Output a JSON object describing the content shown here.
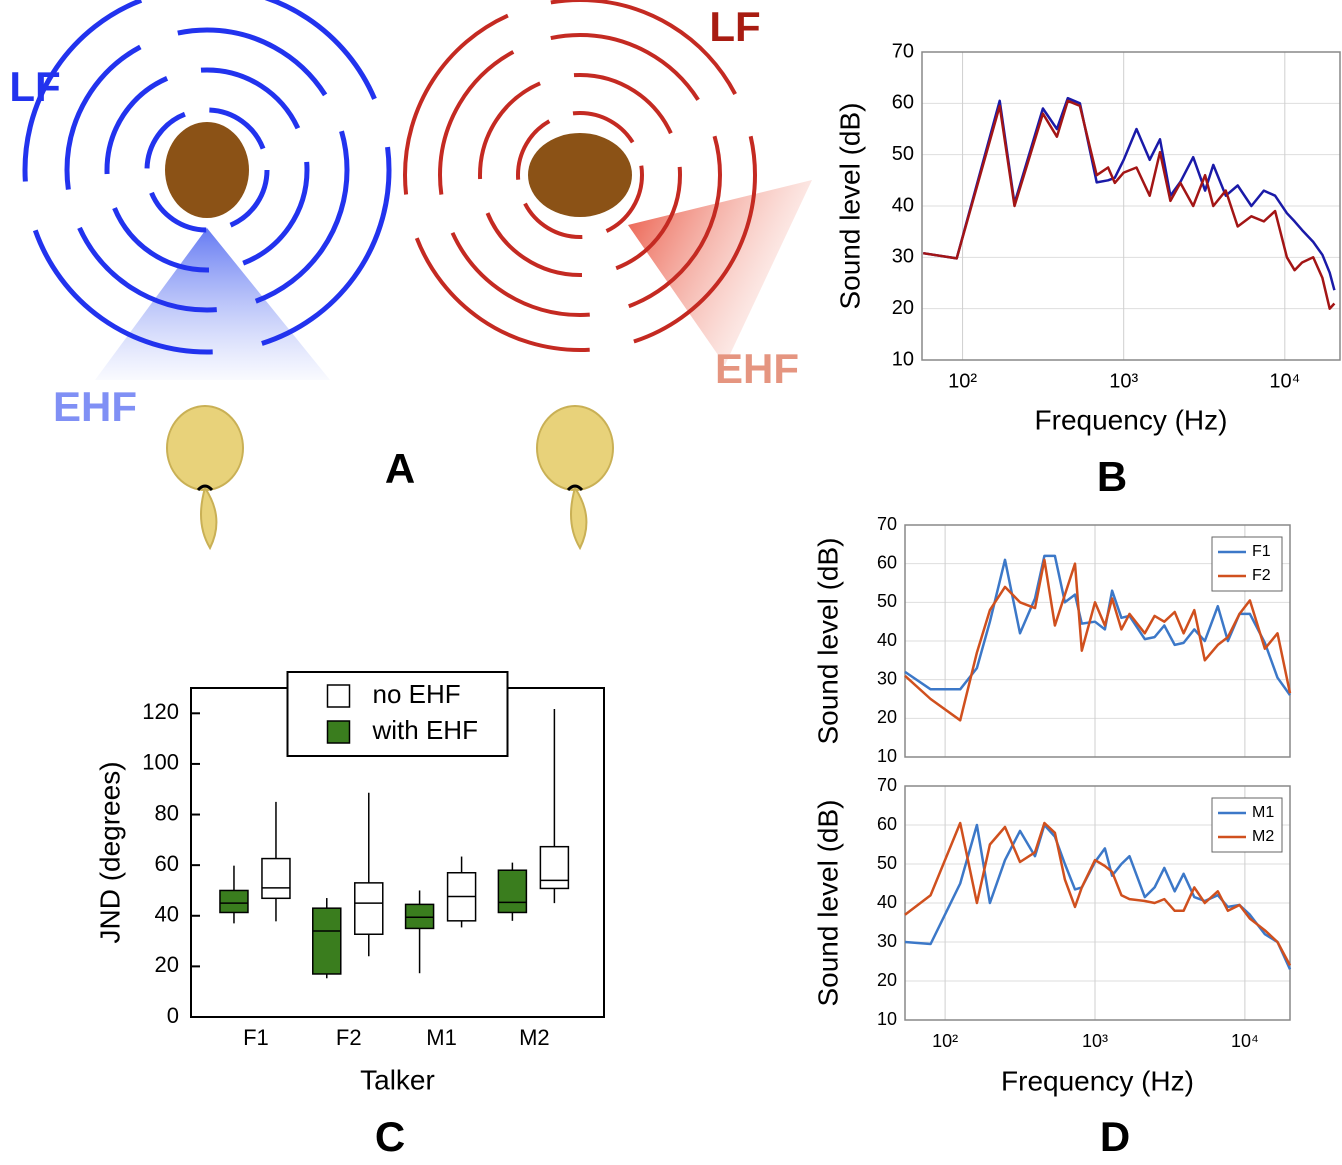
{
  "illustration": {
    "labels": [
      "LF",
      "EHF",
      "LF",
      "EHF"
    ],
    "panel_label": "A"
  },
  "chart_data": [
    {
      "type": "line",
      "panel_label": "B",
      "xlabel": "Frequency (Hz)",
      "ylabel": "Sound level (dB)",
      "log_x": true,
      "grid": true,
      "xlim": [
        56,
        22000
      ],
      "ylim": [
        10,
        70
      ],
      "xticks": [
        {
          "value": 100,
          "label": "10²"
        },
        {
          "value": 1000,
          "label": "10³"
        },
        {
          "value": 10000,
          "label": "10⁴"
        }
      ],
      "yticks": [
        10,
        20,
        30,
        40,
        50,
        60,
        70
      ],
      "x": [
        57,
        92,
        170,
        210,
        315,
        385,
        450,
        535,
        680,
        800,
        880,
        1000,
        1200,
        1450,
        1680,
        1950,
        2250,
        2700,
        3200,
        3600,
        4300,
        5100,
        6200,
        7400,
        8700,
        10300,
        11500,
        12800,
        15000,
        17100,
        19000,
        20300
      ],
      "series": [
        {
          "color": "#1a1aa8",
          "values": [
            30.8,
            29.8,
            60.5,
            40.5,
            59,
            55,
            61,
            60,
            44.6,
            45,
            45.5,
            49,
            55,
            49,
            53,
            42,
            44.7,
            49.5,
            43,
            48,
            42,
            44,
            40,
            43,
            42,
            38.6,
            37,
            35.3,
            33,
            30.5,
            27,
            23.6
          ]
        },
        {
          "color": "#a31515",
          "values": [
            30.8,
            29.8,
            59.5,
            40,
            58,
            53.5,
            60.5,
            59.5,
            46,
            47.5,
            44.5,
            46.5,
            47.5,
            42,
            50.5,
            41,
            44.5,
            40,
            46,
            40,
            43,
            36,
            38,
            37,
            39,
            30,
            27.5,
            29,
            30,
            26,
            20,
            21
          ]
        }
      ]
    },
    {
      "type": "box",
      "panel_label": "C",
      "xlabel": "Talker",
      "ylabel": "JND (degrees)",
      "legend": "upper center",
      "categories": [
        "F1",
        "F2",
        "M1",
        "M2"
      ],
      "ylim": [
        0,
        130
      ],
      "yticks": [
        0,
        20,
        40,
        60,
        80,
        100,
        120
      ],
      "series": [
        {
          "name": "no EHF",
          "color": "#ffffff",
          "min": [
            37.8,
            24,
            35.4,
            45
          ],
          "q1": [
            46.9,
            32.7,
            38,
            50.8
          ],
          "median": [
            51,
            45,
            47.6,
            54
          ],
          "q3": [
            62.6,
            53,
            57,
            67.3
          ],
          "max": [
            85,
            88.6,
            63.4,
            121.7
          ]
        },
        {
          "name": "with EHF",
          "color": "#3a7d1e",
          "min": [
            37,
            15.3,
            17.3,
            38
          ],
          "q1": [
            41.3,
            17,
            35,
            41.3
          ],
          "median": [
            45,
            34,
            39.4,
            45.3
          ],
          "q3": [
            50,
            43,
            44.5,
            58
          ],
          "max": [
            59.8,
            47,
            50,
            61
          ]
        }
      ]
    },
    {
      "type": "line",
      "ylabel": "Sound level (dB)",
      "log_x": true,
      "grid": true,
      "legend": "upper right",
      "xlim": [
        54,
        20000
      ],
      "ylim": [
        10,
        70
      ],
      "xticks": [
        {
          "value": 100,
          "label": "10²"
        },
        {
          "value": 1000,
          "label": "10³"
        },
        {
          "value": 10000,
          "label": "10⁴"
        }
      ],
      "yticks": [
        10,
        20,
        30,
        40,
        50,
        60,
        70
      ],
      "x": [
        54,
        80,
        126,
        163,
        199,
        251,
        316,
        398,
        460,
        540,
        630,
        735,
        816,
        1000,
        1165,
        1300,
        1500,
        1700,
        2150,
        2500,
        2900,
        3400,
        3900,
        4600,
        5400,
        6600,
        7700,
        9200,
        10800,
        13600,
        16500,
        20000
      ],
      "series": [
        {
          "name": "F1",
          "color": "#3c78c8",
          "values": [
            32,
            27.5,
            27.5,
            33,
            45,
            61,
            42,
            51,
            62,
            62,
            50,
            52,
            44.5,
            45,
            43,
            53,
            46,
            46.5,
            40.5,
            41,
            44,
            39,
            39.5,
            43,
            40,
            49,
            40,
            47,
            47,
            39.5,
            30.5,
            26
          ]
        },
        {
          "name": "F2",
          "color": "#d0501e",
          "values": [
            31,
            25,
            19.5,
            37,
            48,
            54,
            50,
            48.5,
            61,
            44,
            52,
            60,
            37.5,
            50,
            44,
            51,
            43,
            47,
            42,
            46.5,
            45,
            47.5,
            42,
            48,
            35,
            39,
            41,
            47,
            50.5,
            38,
            42,
            26.5
          ]
        }
      ]
    },
    {
      "type": "line",
      "panel_label": "D",
      "xlabel": "Frequency (Hz)",
      "ylabel": "Sound level (dB)",
      "log_x": true,
      "grid": true,
      "legend": "upper right",
      "xlim": [
        54,
        20000
      ],
      "ylim": [
        10,
        70
      ],
      "xticks": [
        {
          "value": 100,
          "label": "10²"
        },
        {
          "value": 1000,
          "label": "10³"
        },
        {
          "value": 10000,
          "label": "10⁴"
        }
      ],
      "yticks": [
        10,
        20,
        30,
        40,
        50,
        60,
        70
      ],
      "x": [
        54,
        80,
        126,
        163,
        199,
        251,
        316,
        398,
        460,
        540,
        630,
        735,
        816,
        1000,
        1165,
        1300,
        1500,
        1700,
        2150,
        2500,
        2900,
        3400,
        3900,
        4600,
        5400,
        6600,
        7700,
        9200,
        10800,
        13600,
        16500,
        20000
      ],
      "series": [
        {
          "name": "M1",
          "color": "#3c78c8",
          "values": [
            30,
            29.5,
            45,
            60,
            40,
            51,
            58.5,
            52,
            60,
            57,
            50,
            43.5,
            44,
            50.5,
            54,
            47,
            50,
            52,
            41.5,
            44,
            49,
            43,
            47.5,
            41.5,
            40.5,
            42,
            39,
            39.5,
            37,
            32,
            30,
            23
          ]
        },
        {
          "name": "M2",
          "color": "#d0501e",
          "values": [
            37,
            42,
            60.5,
            40,
            55,
            59.5,
            50.5,
            53,
            60.5,
            58,
            46,
            39,
            44,
            51,
            49.5,
            48,
            42,
            41,
            40.5,
            40,
            41,
            38,
            38,
            44,
            40,
            43,
            38,
            39.5,
            36,
            33,
            30,
            24
          ]
        }
      ]
    }
  ]
}
